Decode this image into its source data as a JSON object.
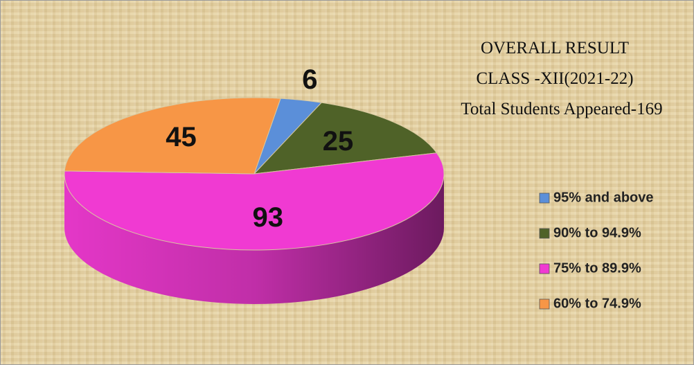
{
  "chart_data": {
    "type": "pie",
    "title": [
      "OVERALL RESULT",
      "CLASS -XII(2021-22)",
      "Total Students Appeared-169"
    ],
    "categories": [
      "95% and above",
      "90% to 94.9%",
      "75% to 89.9%",
      "60% to 74.9%"
    ],
    "values": [
      6,
      25,
      93,
      45
    ],
    "colors": [
      "#5b8fd9",
      "#4f6228",
      "#f03ad2",
      "#f79646"
    ],
    "legend": "right"
  }
}
